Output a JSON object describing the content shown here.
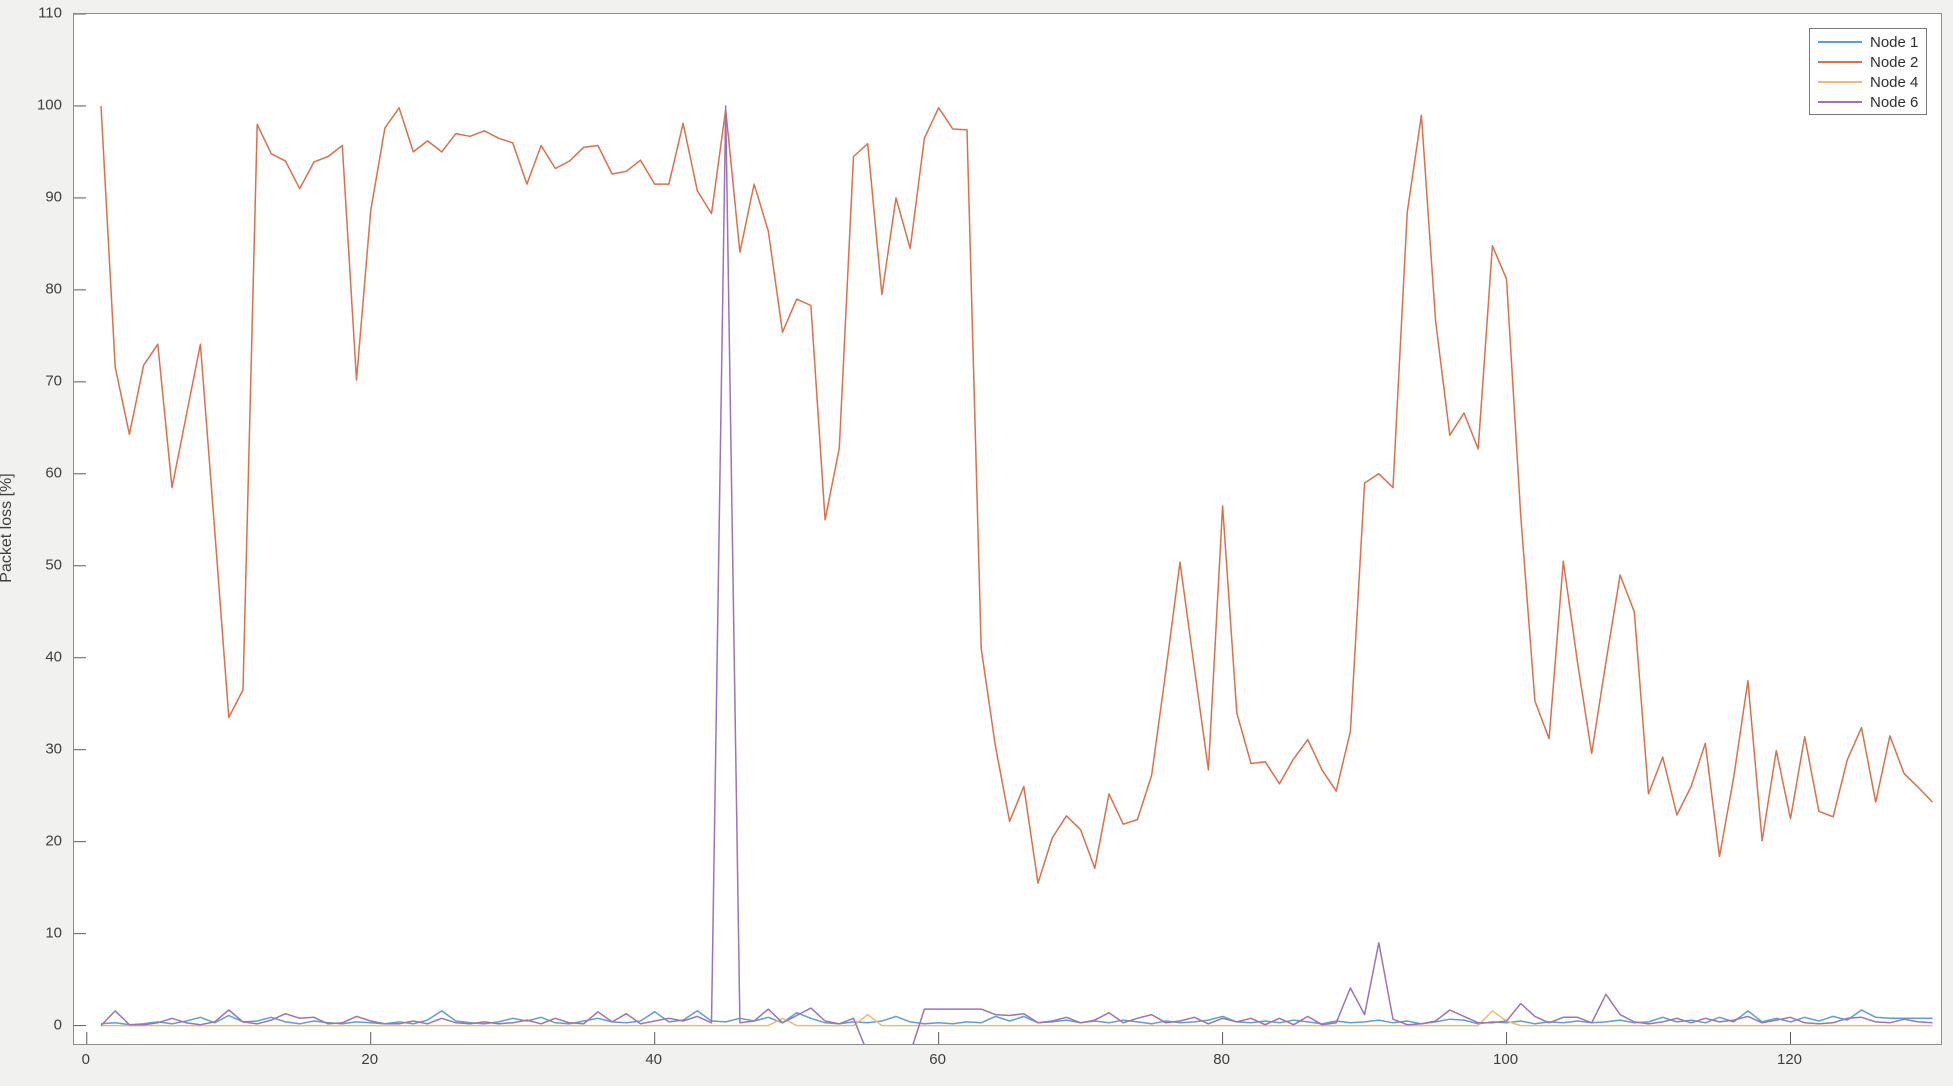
{
  "figure": {
    "background_color": "#f1f1ef",
    "plot_background_color": "#ffffff",
    "axis_color": "#8c8c8c",
    "tick_color": "#5a5a5a",
    "tick_label_color": "#3f3f3f"
  },
  "chart_data": {
    "type": "line",
    "title": "",
    "xlabel": "",
    "ylabel": "Packet loss [%]",
    "xlim": [
      -0.9,
      130.6
    ],
    "ylim": [
      -2,
      110
    ],
    "x_ticks": [
      0,
      20,
      40,
      60,
      80,
      100,
      120
    ],
    "y_ticks": [
      0,
      10,
      20,
      30,
      40,
      50,
      60,
      70,
      80,
      90,
      100,
      110
    ],
    "grid": false,
    "legend_position": "top-right",
    "x_start": 1,
    "x_step": 1,
    "series": [
      {
        "name": "Node 1",
        "color": "#5E9FD3",
        "values": [
          0.2,
          0.3,
          0.1,
          0.2,
          0.4,
          0.2,
          0.5,
          0.9,
          0.3,
          1.1,
          0.4,
          0.5,
          0.9,
          0.4,
          0.2,
          0.5,
          0.3,
          0.2,
          0.4,
          0.3,
          0.2,
          0.4,
          0.2,
          0.6,
          1.6,
          0.5,
          0.3,
          0.2,
          0.4,
          0.8,
          0.5,
          0.9,
          0.3,
          0.2,
          0.5,
          0.8,
          0.4,
          0.3,
          0.5,
          1.5,
          0.4,
          0.6,
          1.6,
          0.5,
          0.4,
          0.8,
          0.5,
          0.9,
          0.3,
          1.4,
          0.8,
          0.3,
          0.2,
          0.4,
          0.3,
          0.5,
          1.0,
          0.4,
          0.2,
          0.3,
          0.2,
          0.4,
          0.3,
          1.0,
          0.5,
          1.0,
          0.3,
          0.4,
          0.6,
          0.3,
          0.5,
          0.3,
          0.6,
          0.4,
          0.2,
          0.5,
          0.3,
          0.4,
          0.6,
          1.0,
          0.4,
          0.3,
          0.5,
          0.3,
          0.6,
          0.4,
          0.2,
          0.5,
          0.3,
          0.4,
          0.6,
          0.3,
          0.5,
          0.2,
          0.4,
          0.7,
          0.6,
          0.2,
          0.4,
          0.3,
          0.5,
          0.2,
          0.4,
          0.3,
          0.5,
          0.3,
          0.4,
          0.6,
          0.3,
          0.4,
          0.9,
          0.4,
          0.6,
          0.3,
          0.9,
          0.4,
          1.6,
          0.4,
          0.8,
          0.4,
          0.9,
          0.5,
          1.0,
          0.6,
          1.7,
          0.9,
          0.8,
          0.8,
          0.8,
          0.8
        ]
      },
      {
        "name": "Node 2",
        "color": "#D8714C",
        "values": [
          100,
          71.6,
          64.3,
          71.8,
          74.1,
          58.5,
          66.3,
          74.1,
          54,
          33.5,
          36.5,
          98,
          94.8,
          94,
          91,
          93.9,
          94.5,
          95.7,
          70.2,
          88.6,
          97.6,
          99.8,
          95,
          96.2,
          95,
          97,
          96.7,
          97.3,
          96.5,
          96,
          91.5,
          95.7,
          93.2,
          94,
          95.5,
          95.7,
          92.6,
          92.9,
          94.1,
          91.5,
          91.5,
          98.1,
          90.8,
          88.3,
          99.6,
          84.1,
          91.5,
          86.4,
          75.4,
          79,
          78.3,
          55,
          62.8,
          94.5,
          95.9,
          79.5,
          90,
          84.5,
          96.5,
          99.8,
          97.5,
          97.4,
          41,
          30.4,
          22.2,
          26,
          15.5,
          20.4,
          22.8,
          21.3,
          17.1,
          25.2,
          21.9,
          22.4,
          27.2,
          38.5,
          50.4,
          39,
          27.8,
          56.5,
          34,
          28.5,
          28.7,
          26.3,
          29,
          31.1,
          27.8,
          25.5,
          32,
          59,
          60,
          58.5,
          88.4,
          99,
          76.6,
          64.2,
          66.6,
          62.7,
          84.8,
          81.2,
          55.5,
          35.3,
          31.2,
          50.5,
          39.5,
          29.6,
          39.5,
          49,
          45,
          25.2,
          29.2,
          22.9,
          26,
          30.7,
          18.4,
          27,
          37.5,
          20.1,
          29.9,
          22.5,
          31.4,
          23.3,
          22.7,
          28.9,
          32.4,
          24.3,
          31.5,
          27.4,
          25.9,
          24.3
        ]
      },
      {
        "name": "Node 4",
        "color": "#E8BE72",
        "values": [
          0,
          0,
          0,
          0,
          0,
          0,
          0,
          0,
          0,
          0,
          0,
          0,
          0,
          0,
          0,
          0,
          0,
          0,
          0,
          0,
          0,
          0,
          0,
          0,
          0,
          0,
          0,
          0,
          0,
          0,
          0,
          0,
          0,
          0,
          0,
          0,
          0,
          0,
          0,
          0,
          0,
          0,
          0,
          0,
          0,
          0,
          0,
          0,
          0.8,
          0,
          0,
          0,
          0,
          0,
          1.2,
          0,
          0,
          0,
          0,
          0,
          0,
          0,
          0,
          0,
          0,
          0,
          0,
          0,
          0,
          0,
          0,
          0,
          0,
          0,
          0,
          0,
          0,
          0,
          0,
          0,
          0,
          0,
          0,
          0,
          0,
          0,
          0,
          0,
          0,
          0,
          0,
          0,
          0,
          0,
          0,
          0,
          0,
          0,
          1.6,
          0.5,
          0,
          0,
          0,
          0,
          0,
          0,
          0,
          0,
          0,
          0,
          0,
          0,
          0,
          0,
          0,
          0,
          0,
          0,
          0,
          0,
          0,
          0,
          0,
          0,
          0,
          0,
          0,
          0,
          0,
          0
        ]
      },
      {
        "name": "Node 6",
        "color": "#9C74B4",
        "values": [
          0,
          1.6,
          0.1,
          0.1,
          0.3,
          0.8,
          0.3,
          0.1,
          0.4,
          1.7,
          0.4,
          0.2,
          0.6,
          1.3,
          0.8,
          0.9,
          0.2,
          0.3,
          1.0,
          0.5,
          0.2,
          0.2,
          0.5,
          0.2,
          0.8,
          0.3,
          0.2,
          0.4,
          0.2,
          0.3,
          0.6,
          0.2,
          0.8,
          0.3,
          0.2,
          1.5,
          0.4,
          1.3,
          0.2,
          0.5,
          0.8,
          0.5,
          1.0,
          0.3,
          100,
          0.3,
          0.5,
          1.8,
          0.3,
          1.1,
          1.9,
          0.5,
          0.2,
          0.8,
          -3,
          -3,
          -3,
          -3,
          1.8,
          1.8,
          1.8,
          1.8,
          1.8,
          1.2,
          1.1,
          1.3,
          0.3,
          0.5,
          0.9,
          0.3,
          0.6,
          1.4,
          0.3,
          0.8,
          1.2,
          0.3,
          0.5,
          0.9,
          0.2,
          0.8,
          0.4,
          0.8,
          0.1,
          0.8,
          0.1,
          1.0,
          0.1,
          0.3,
          4.1,
          1.2,
          9.0,
          0.7,
          0.1,
          0.2,
          0.5,
          1.7,
          1.0,
          0.3,
          0.3,
          0.5,
          2.4,
          1.0,
          0.3,
          0.9,
          0.9,
          0.3,
          3.4,
          1.2,
          0.4,
          0.2,
          0.4,
          0.8,
          0.3,
          0.8,
          0.4,
          0.6,
          1.0,
          0.3,
          0.6,
          0.9,
          0.3,
          0.2,
          0.3,
          0.8,
          0.9,
          0.4,
          0.3,
          0.7,
          0.4,
          0.3
        ]
      }
    ]
  },
  "legend": {
    "items": [
      {
        "label": "Node 1"
      },
      {
        "label": "Node 2"
      },
      {
        "label": "Node 4"
      },
      {
        "label": "Node 6"
      }
    ]
  }
}
